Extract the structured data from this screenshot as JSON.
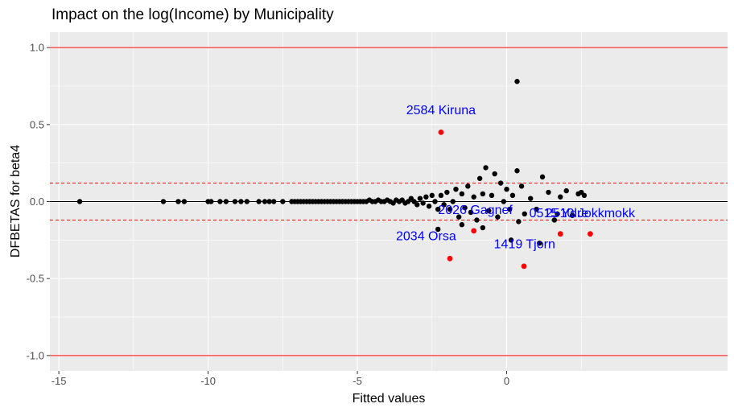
{
  "chart_data": {
    "type": "scatter",
    "title": "Impact on the log(Income) by Municipality",
    "xlabel": "Fitted values",
    "ylabel": "DFBETAS for beta4",
    "xlim": [
      -15.3,
      7.4
    ],
    "ylim": [
      -1.1,
      1.1
    ],
    "x_ticks": [
      -15,
      -10,
      -5,
      0
    ],
    "x_tick_labels": [
      "-15",
      "-10",
      "-5",
      "0"
    ],
    "y_ticks": [
      -1.0,
      -0.5,
      0.0,
      0.5,
      1.0
    ],
    "y_tick_labels": [
      "-1.0",
      "-0.5",
      "0.0",
      "0.5",
      "1.0"
    ],
    "grid": true,
    "reference_lines": [
      {
        "y": 1.0,
        "color": "#ff0000",
        "style": "solid"
      },
      {
        "y": -1.0,
        "color": "#ff0000",
        "style": "solid"
      },
      {
        "y": 0.12,
        "color": "#ff0000",
        "style": "dashed"
      },
      {
        "y": -0.12,
        "color": "#ff0000",
        "style": "dashed"
      },
      {
        "y": 0.0,
        "color": "#000000",
        "style": "solid"
      }
    ],
    "colors": {
      "panel_bg": "#ebebeb",
      "grid": "#ffffff",
      "point": "#000000",
      "highlight": "#ff0000",
      "annotation": "#0000ff"
    },
    "points": [
      [
        -14.3,
        0.0
      ],
      [
        -11.5,
        0.0
      ],
      [
        -11.0,
        0.0
      ],
      [
        -10.8,
        0.0
      ],
      [
        -10.0,
        0.0
      ],
      [
        -9.9,
        0.0
      ],
      [
        -9.6,
        0.0
      ],
      [
        -9.4,
        0.0
      ],
      [
        -9.1,
        0.0
      ],
      [
        -8.9,
        0.0
      ],
      [
        -8.7,
        0.0
      ],
      [
        -8.3,
        0.0
      ],
      [
        -8.1,
        0.0
      ],
      [
        -7.95,
        0.0
      ],
      [
        -7.8,
        0.0
      ],
      [
        -7.5,
        0.0
      ],
      [
        -7.2,
        0.0
      ],
      [
        -7.1,
        0.0
      ],
      [
        -7.0,
        0.0
      ],
      [
        -6.9,
        0.0
      ],
      [
        -6.8,
        0.0
      ],
      [
        -6.7,
        0.0
      ],
      [
        -6.6,
        0.0
      ],
      [
        -6.5,
        0.0
      ],
      [
        -6.4,
        0.0
      ],
      [
        -6.3,
        0.0
      ],
      [
        -6.2,
        0.0
      ],
      [
        -6.1,
        0.0
      ],
      [
        -6.0,
        0.0
      ],
      [
        -5.9,
        0.0
      ],
      [
        -5.8,
        0.0
      ],
      [
        -5.7,
        0.0
      ],
      [
        -5.6,
        0.0
      ],
      [
        -5.5,
        0.0
      ],
      [
        -5.4,
        0.0
      ],
      [
        -5.3,
        0.0
      ],
      [
        -5.2,
        0.0
      ],
      [
        -5.1,
        0.0
      ],
      [
        -5.0,
        0.0
      ],
      [
        -4.9,
        0.0
      ],
      [
        -4.8,
        0.0
      ],
      [
        -4.7,
        0.0
      ],
      [
        -4.6,
        0.01
      ],
      [
        -4.5,
        0.0
      ],
      [
        -4.4,
        0.0
      ],
      [
        -4.3,
        0.01
      ],
      [
        -4.2,
        0.0
      ],
      [
        -4.1,
        0.0
      ],
      [
        -4.0,
        0.01
      ],
      [
        -3.9,
        0.0
      ],
      [
        -3.8,
        -0.01
      ],
      [
        -3.7,
        0.01
      ],
      [
        -3.6,
        0.0
      ],
      [
        -3.5,
        0.01
      ],
      [
        -3.4,
        -0.01
      ],
      [
        -3.3,
        0.0
      ],
      [
        -3.2,
        0.02
      ],
      [
        -3.1,
        0.0
      ],
      [
        -3.0,
        -0.02
      ],
      [
        -2.9,
        0.02
      ],
      [
        -2.8,
        -0.01
      ],
      [
        -2.7,
        0.03
      ],
      [
        -2.6,
        -0.03
      ],
      [
        -2.5,
        0.04
      ],
      [
        -2.4,
        0.0
      ],
      [
        -2.3,
        -0.05
      ],
      [
        -2.2,
        0.04
      ],
      [
        -2.1,
        -0.02
      ],
      [
        -2.0,
        0.06
      ],
      [
        -1.9,
        -0.05
      ],
      [
        -1.8,
        0.0
      ],
      [
        -1.7,
        0.08
      ],
      [
        -1.6,
        -0.1
      ],
      [
        -1.5,
        0.05
      ],
      [
        -1.4,
        -0.04
      ],
      [
        -1.3,
        0.1
      ],
      [
        -1.2,
        -0.07
      ],
      [
        -1.1,
        0.03
      ],
      [
        -1.0,
        -0.12
      ],
      [
        -0.9,
        0.15
      ],
      [
        -0.8,
        0.05
      ],
      [
        -0.7,
        0.22
      ],
      [
        -0.6,
        -0.06
      ],
      [
        -0.5,
        0.04
      ],
      [
        -0.4,
        0.18
      ],
      [
        -0.3,
        -0.1
      ],
      [
        -0.2,
        0.12
      ],
      [
        -0.1,
        0.0
      ],
      [
        0.0,
        0.08
      ],
      [
        0.1,
        -0.05
      ],
      [
        0.2,
        0.04
      ],
      [
        0.35,
        0.2
      ],
      [
        0.5,
        0.1
      ],
      [
        0.6,
        -0.08
      ],
      [
        0.8,
        0.02
      ],
      [
        1.0,
        -0.05
      ],
      [
        1.2,
        0.16
      ],
      [
        1.4,
        0.06
      ],
      [
        1.6,
        -0.12
      ],
      [
        1.8,
        0.03
      ],
      [
        2.0,
        0.07
      ],
      [
        2.2,
        -0.09
      ],
      [
        2.4,
        0.05
      ],
      [
        2.6,
        0.04
      ],
      [
        -2.3,
        -0.18
      ],
      [
        -1.5,
        -0.15
      ],
      [
        -0.8,
        -0.17
      ],
      [
        0.4,
        -0.13
      ],
      [
        1.1,
        -0.27
      ],
      [
        0.15,
        -0.25
      ],
      [
        1.7,
        -0.08
      ],
      [
        2.5,
        0.06
      ],
      [
        0.35,
        0.78
      ]
    ],
    "highlighted": [
      {
        "x": -2.2,
        "y": 0.45
      },
      {
        "x": -1.9,
        "y": -0.37
      },
      {
        "x": -1.1,
        "y": -0.19
      },
      {
        "x": 0.58,
        "y": -0.42
      },
      {
        "x": 1.8,
        "y": -0.21
      },
      {
        "x": 2.8,
        "y": -0.21
      }
    ],
    "annotations": [
      {
        "text": "2584 Kiruna",
        "x": -2.2,
        "y": 0.59
      },
      {
        "text": "2034 Orsa",
        "x": -2.7,
        "y": -0.23
      },
      {
        "text": "2026 Gagnef",
        "x": -1.05,
        "y": -0.06
      },
      {
        "text": "1419 Tjorn",
        "x": 0.6,
        "y": -0.28
      },
      {
        "text": "0515 Ydre",
        "x": 1.75,
        "y": -0.08
      },
      {
        "text": "2510 Jokkmokk",
        "x": 2.8,
        "y": -0.08
      }
    ]
  }
}
